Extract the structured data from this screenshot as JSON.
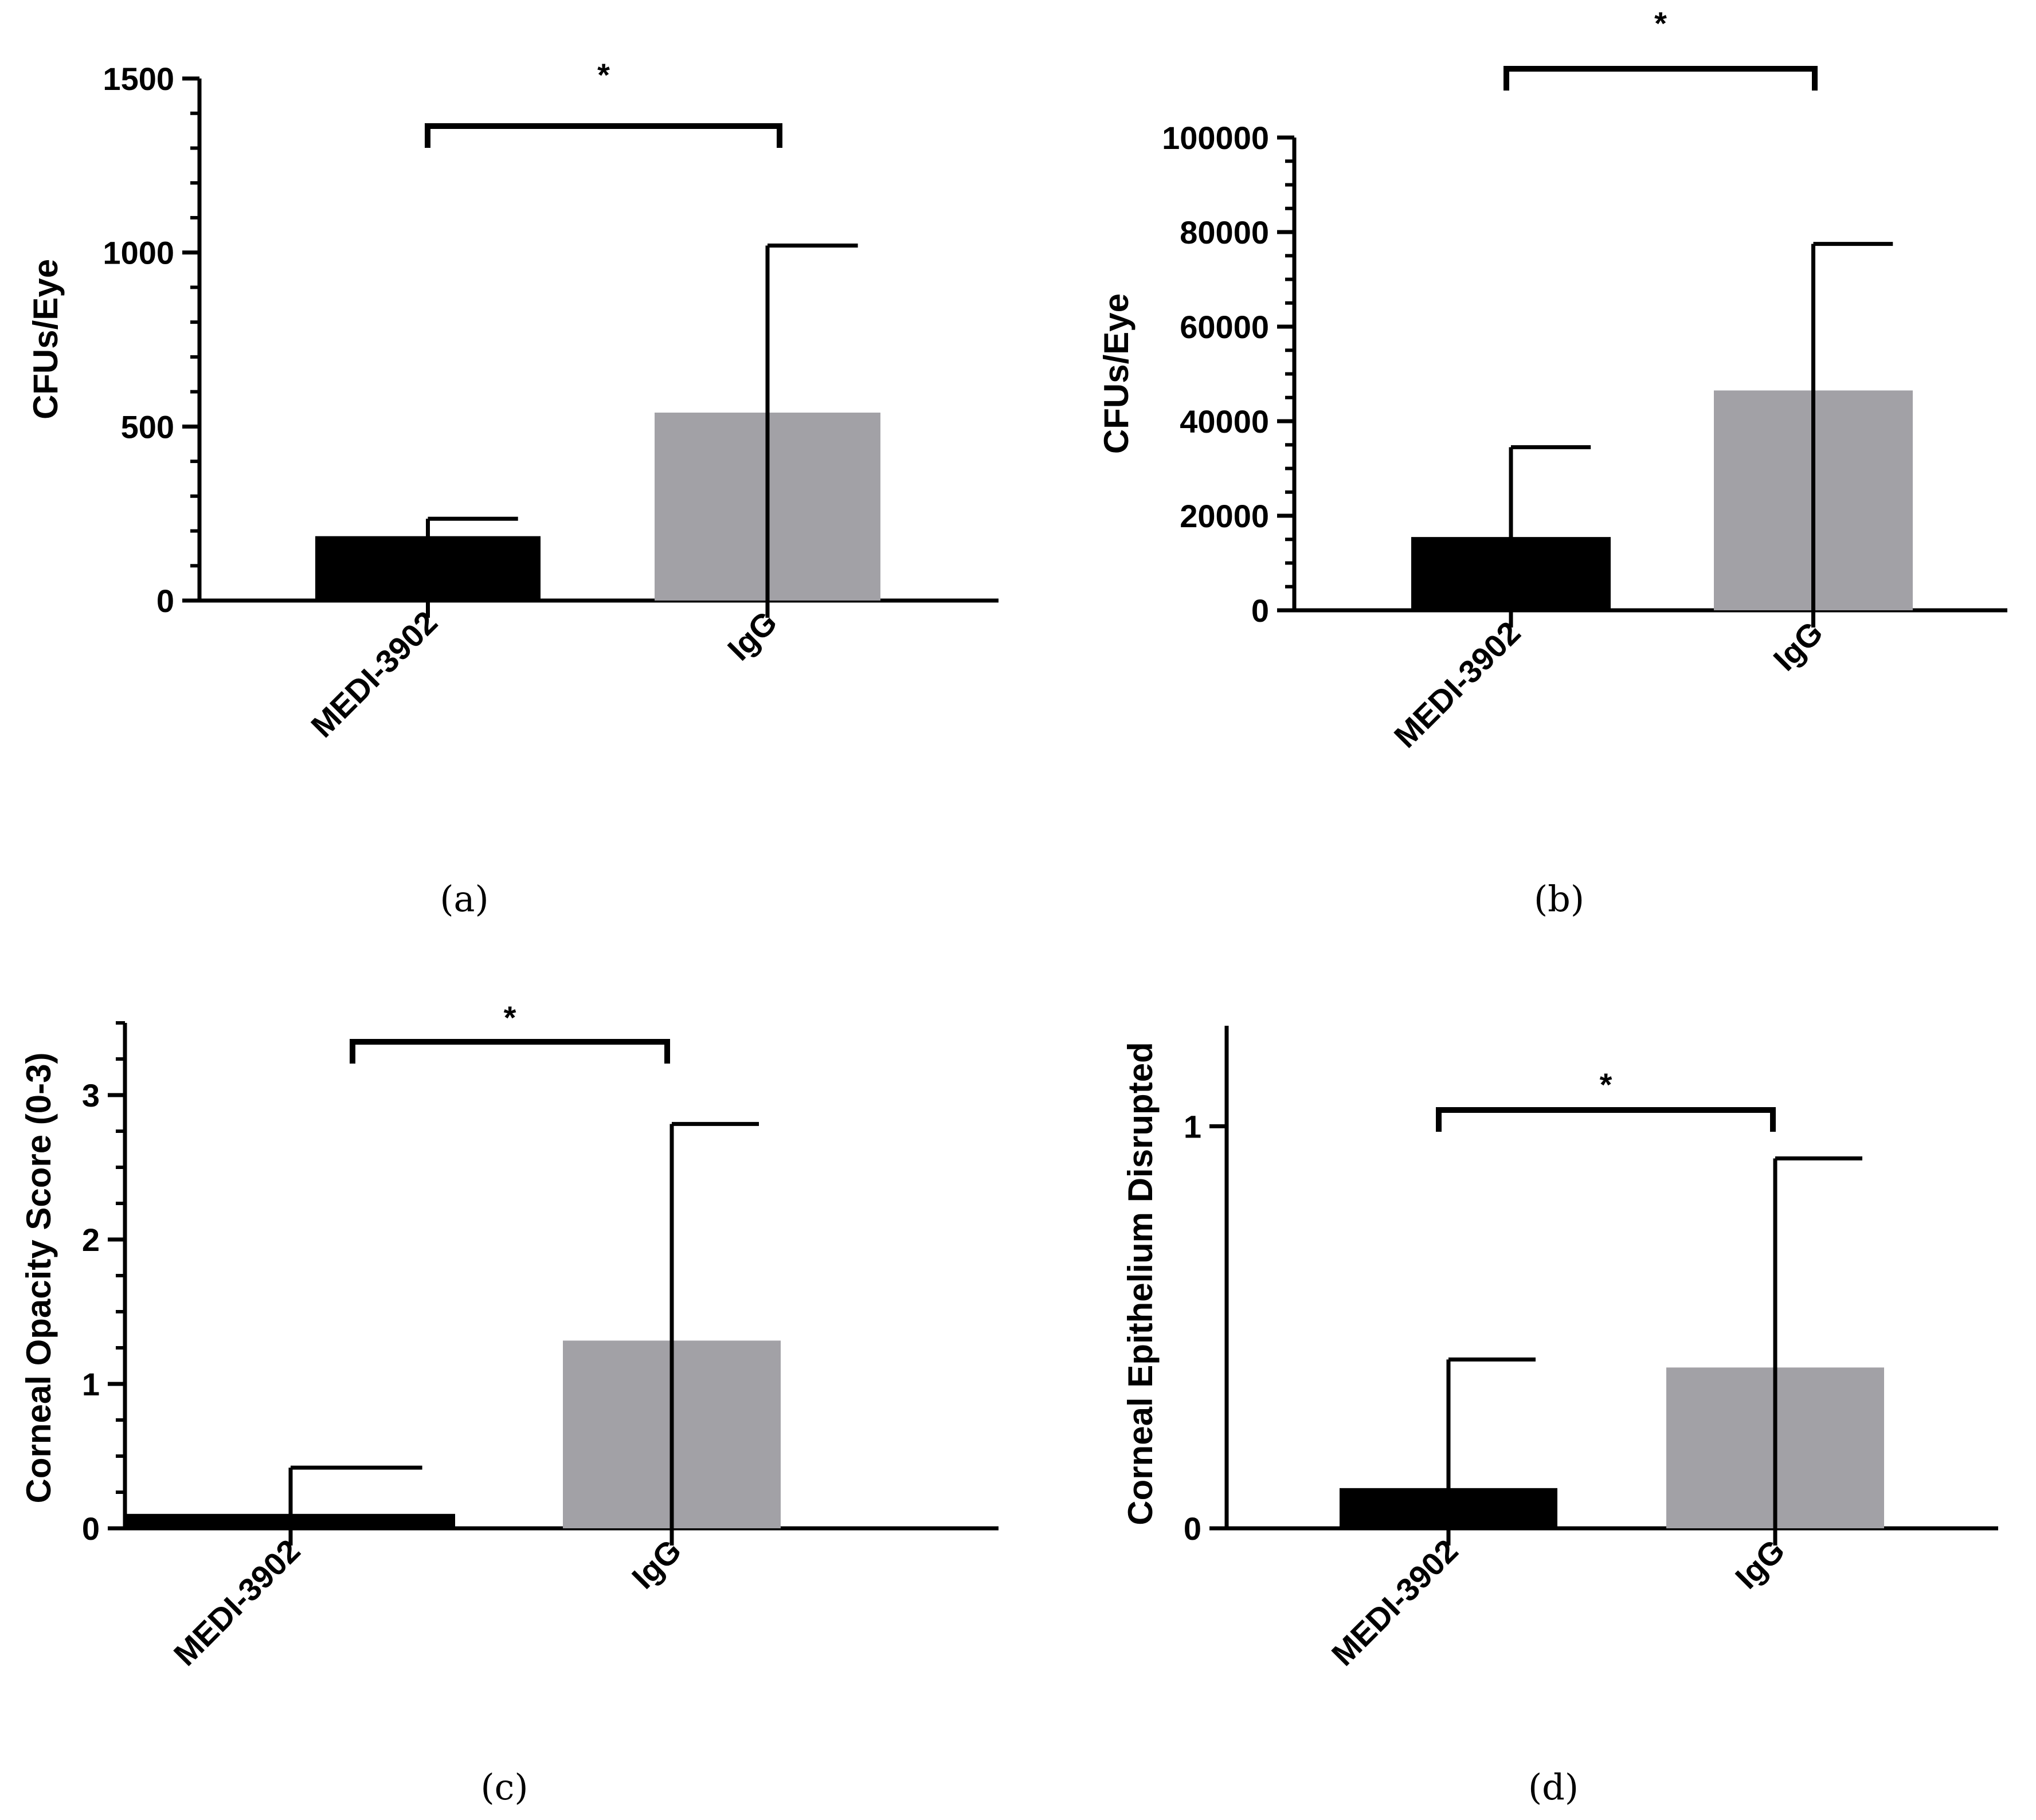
{
  "chart_data": [
    {
      "type": "bar",
      "panel_label": "(a)",
      "categories": [
        "MEDI-3902",
        "IgG"
      ],
      "values": [
        185,
        540
      ],
      "errors": [
        50,
        480
      ],
      "ylabel": "CFUs/Eye",
      "ylim": [
        0,
        1500
      ],
      "yticks": [
        "0",
        "500",
        "1000",
        "1500"
      ],
      "ytick_values": [
        0,
        500,
        1000,
        1500
      ],
      "minor_step": 100,
      "significance": "*",
      "colors": [
        "#000000",
        "#a2a1a6"
      ]
    },
    {
      "type": "bar",
      "panel_label": "(b)",
      "categories": [
        "MEDI-3902",
        "IgG"
      ],
      "values": [
        15500,
        46500
      ],
      "errors": [
        19000,
        31000
      ],
      "ylabel": "CFUs/Eye",
      "ylim": [
        0,
        100000
      ],
      "yticks": [
        "0",
        "20000",
        "40000",
        "60000",
        "80000",
        "100000"
      ],
      "ytick_values": [
        0,
        20000,
        40000,
        60000,
        80000,
        100000
      ],
      "minor_step": 5000,
      "significance": "*",
      "colors": [
        "#000000",
        "#a2a1a6"
      ]
    },
    {
      "type": "bar",
      "panel_label": "(c)",
      "categories": [
        "MEDI-3902",
        "IgG"
      ],
      "values": [
        0.1,
        1.3
      ],
      "errors": [
        0.32,
        1.5
      ],
      "ylabel": "Corneal Opacity Score  (0-3)",
      "ylim": [
        0,
        3.5
      ],
      "yticks": [
        "0",
        "1",
        "2",
        "3"
      ],
      "ytick_values": [
        0,
        1,
        2,
        3
      ],
      "minor_step": 0.25,
      "significance": "*",
      "colors": [
        "#000000",
        "#a2a1a6"
      ]
    },
    {
      "type": "bar",
      "panel_label": "(d)",
      "categories": [
        "MEDI-3902",
        "IgG"
      ],
      "values": [
        0.1,
        0.4
      ],
      "errors": [
        0.32,
        0.52
      ],
      "ylabel": "Corneal Epithelium Disrupted",
      "ylim": [
        0,
        1.25
      ],
      "yticks": [
        "0",
        "1"
      ],
      "ytick_values": [
        0,
        1
      ],
      "minor_step": 0,
      "significance": "*",
      "colors": [
        "#000000",
        "#a2a1a6"
      ]
    }
  ]
}
